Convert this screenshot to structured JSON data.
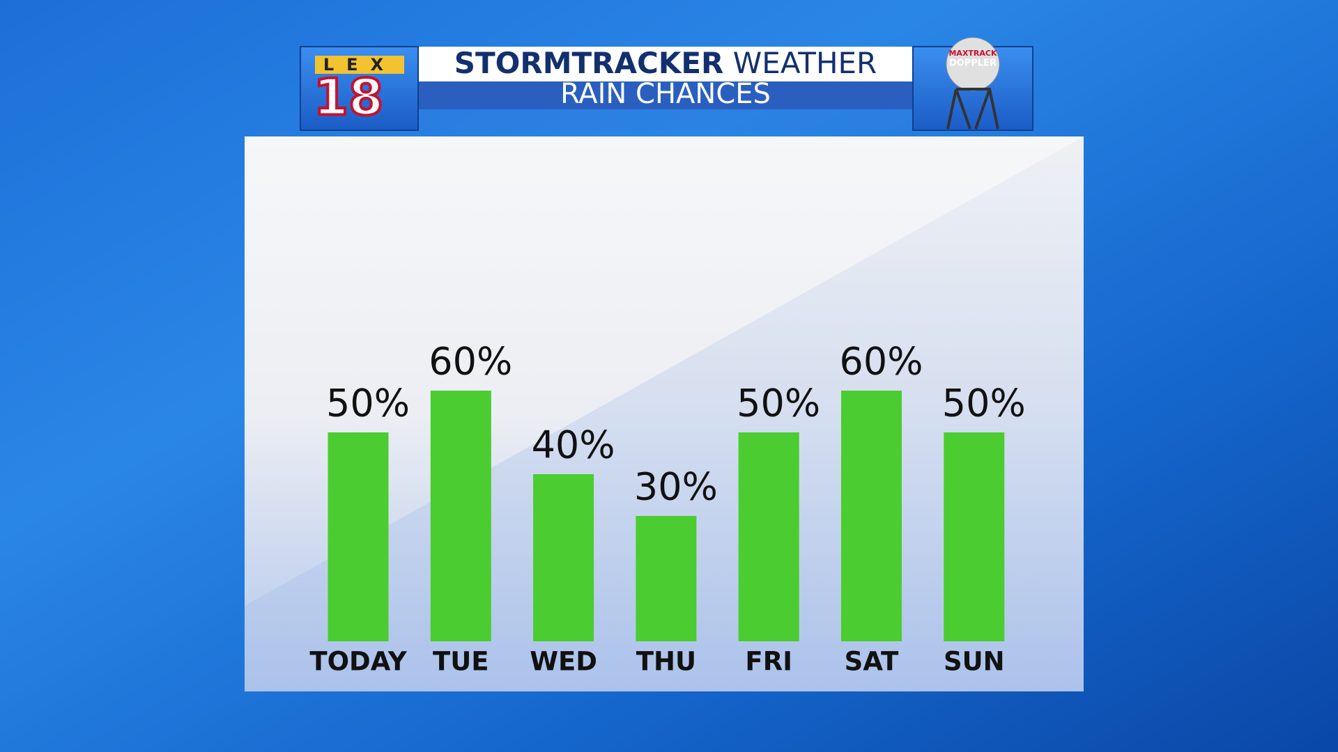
{
  "branding": {
    "station": "LEX",
    "channel": "18",
    "radar_brand": [
      "MAXTRACK",
      "DOPPLER"
    ]
  },
  "chart_data": {
    "type": "bar",
    "title": "STORMTRACKER",
    "title_suffix": "WEATHER",
    "subtitle": "RAIN CHANCES",
    "categories": [
      "TODAY",
      "TUE",
      "WED",
      "THU",
      "FRI",
      "SAT",
      "SUN"
    ],
    "values": [
      50,
      60,
      40,
      30,
      50,
      60,
      50
    ],
    "value_labels": [
      "50%",
      "60%",
      "40%",
      "30%",
      "50%",
      "60%",
      "50%"
    ],
    "color": "#4bcc30"
  }
}
